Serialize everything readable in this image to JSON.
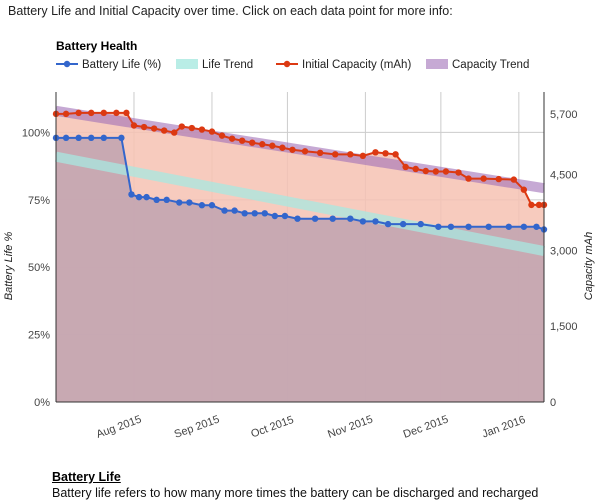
{
  "intro": "Battery Life and Initial Capacity over time. Click on each data point for more info:",
  "chart_data": {
    "type": "line",
    "title": "Battery Health",
    "ylabel": "Battery Life %",
    "y2label": "Capacity mAh",
    "ylim": [
      0,
      115
    ],
    "y2lim": [
      0,
      6133
    ],
    "xlim": [
      "2015-07-01",
      "2016-01-11"
    ],
    "yticks": [
      "0%",
      "25%",
      "50%",
      "75%",
      "100%"
    ],
    "y2ticks": [
      "0",
      "1,500",
      "3,000",
      "4,500",
      "5,700"
    ],
    "xticks": [
      {
        "date": "2015-08-01",
        "label": "Aug 2015"
      },
      {
        "date": "2015-09-01",
        "label": "Sep 2015"
      },
      {
        "date": "2015-10-01",
        "label": "Oct 2015"
      },
      {
        "date": "2015-11-01",
        "label": "Nov 2015"
      },
      {
        "date": "2015-12-01",
        "label": "Dec 2015"
      },
      {
        "date": "2016-01-01",
        "label": "Jan 2016"
      }
    ],
    "grid": true,
    "legend_position": "top",
    "series": [
      {
        "name": "Battery Life (%)",
        "axis": "left",
        "type": "line-area",
        "color": "#3366cc",
        "area_color": "#c0a3b0",
        "points": [
          [
            "2015-07-01",
            98
          ],
          [
            "2015-07-05",
            98
          ],
          [
            "2015-07-10",
            98
          ],
          [
            "2015-07-15",
            98
          ],
          [
            "2015-07-20",
            98
          ],
          [
            "2015-07-27",
            98
          ],
          [
            "2015-07-31",
            77
          ],
          [
            "2015-08-03",
            76
          ],
          [
            "2015-08-06",
            76
          ],
          [
            "2015-08-10",
            75
          ],
          [
            "2015-08-14",
            75
          ],
          [
            "2015-08-19",
            74
          ],
          [
            "2015-08-23",
            74
          ],
          [
            "2015-08-28",
            73
          ],
          [
            "2015-09-01",
            73
          ],
          [
            "2015-09-06",
            71
          ],
          [
            "2015-09-10",
            71
          ],
          [
            "2015-09-14",
            70
          ],
          [
            "2015-09-18",
            70
          ],
          [
            "2015-09-22",
            70
          ],
          [
            "2015-09-26",
            69
          ],
          [
            "2015-09-30",
            69
          ],
          [
            "2015-10-05",
            68
          ],
          [
            "2015-10-12",
            68
          ],
          [
            "2015-10-19",
            68
          ],
          [
            "2015-10-26",
            68
          ],
          [
            "2015-10-31",
            67
          ],
          [
            "2015-11-05",
            67
          ],
          [
            "2015-11-10",
            66
          ],
          [
            "2015-11-16",
            66
          ],
          [
            "2015-11-23",
            66
          ],
          [
            "2015-11-30",
            65
          ],
          [
            "2015-12-05",
            65
          ],
          [
            "2015-12-12",
            65
          ],
          [
            "2015-12-20",
            65
          ],
          [
            "2015-12-28",
            65
          ],
          [
            "2016-01-03",
            65
          ],
          [
            "2016-01-08",
            65
          ],
          [
            "2016-01-11",
            64
          ]
        ]
      },
      {
        "name": "Life Trend",
        "axis": "left",
        "type": "trend",
        "color": "#a8e8e0",
        "start": [
          "2015-07-01",
          91
        ],
        "end": [
          "2016-01-11",
          56
        ]
      },
      {
        "name": "Initial Capacity (mAh)",
        "axis": "right",
        "type": "line-area",
        "color": "#dc3912",
        "area_color": "#f6c2b3",
        "points": [
          [
            "2015-07-01",
            5700
          ],
          [
            "2015-07-05",
            5700
          ],
          [
            "2015-07-10",
            5720
          ],
          [
            "2015-07-15",
            5720
          ],
          [
            "2015-07-20",
            5720
          ],
          [
            "2015-07-25",
            5720
          ],
          [
            "2015-07-29",
            5720
          ],
          [
            "2015-08-01",
            5470
          ],
          [
            "2015-08-05",
            5440
          ],
          [
            "2015-08-09",
            5410
          ],
          [
            "2015-08-13",
            5370
          ],
          [
            "2015-08-17",
            5330
          ],
          [
            "2015-08-20",
            5450
          ],
          [
            "2015-08-24",
            5420
          ],
          [
            "2015-08-28",
            5390
          ],
          [
            "2015-09-01",
            5350
          ],
          [
            "2015-09-05",
            5270
          ],
          [
            "2015-09-09",
            5210
          ],
          [
            "2015-09-13",
            5170
          ],
          [
            "2015-09-17",
            5130
          ],
          [
            "2015-09-21",
            5100
          ],
          [
            "2015-09-25",
            5070
          ],
          [
            "2015-09-29",
            5030
          ],
          [
            "2015-10-03",
            4990
          ],
          [
            "2015-10-08",
            4960
          ],
          [
            "2015-10-14",
            4930
          ],
          [
            "2015-10-20",
            4900
          ],
          [
            "2015-10-26",
            4900
          ],
          [
            "2015-10-31",
            4870
          ],
          [
            "2015-11-05",
            4940
          ],
          [
            "2015-11-09",
            4920
          ],
          [
            "2015-11-13",
            4900
          ],
          [
            "2015-11-17",
            4650
          ],
          [
            "2015-11-21",
            4610
          ],
          [
            "2015-11-25",
            4570
          ],
          [
            "2015-11-29",
            4560
          ],
          [
            "2015-12-03",
            4560
          ],
          [
            "2015-12-08",
            4540
          ],
          [
            "2015-12-12",
            4420
          ],
          [
            "2015-12-18",
            4420
          ],
          [
            "2015-12-24",
            4410
          ],
          [
            "2015-12-30",
            4400
          ],
          [
            "2016-01-03",
            4200
          ],
          [
            "2016-01-06",
            3900
          ],
          [
            "2016-01-09",
            3900
          ],
          [
            "2016-01-11",
            3900
          ]
        ]
      },
      {
        "name": "Capacity Trend",
        "axis": "right",
        "type": "trend",
        "color": "#a070b8",
        "start": [
          "2015-07-01",
          5760
        ],
        "end": [
          "2016-01-11",
          4230
        ]
      }
    ]
  },
  "section": {
    "title": "Battery Life",
    "text": "Battery life refers to how many more times the battery can be discharged and recharged"
  }
}
